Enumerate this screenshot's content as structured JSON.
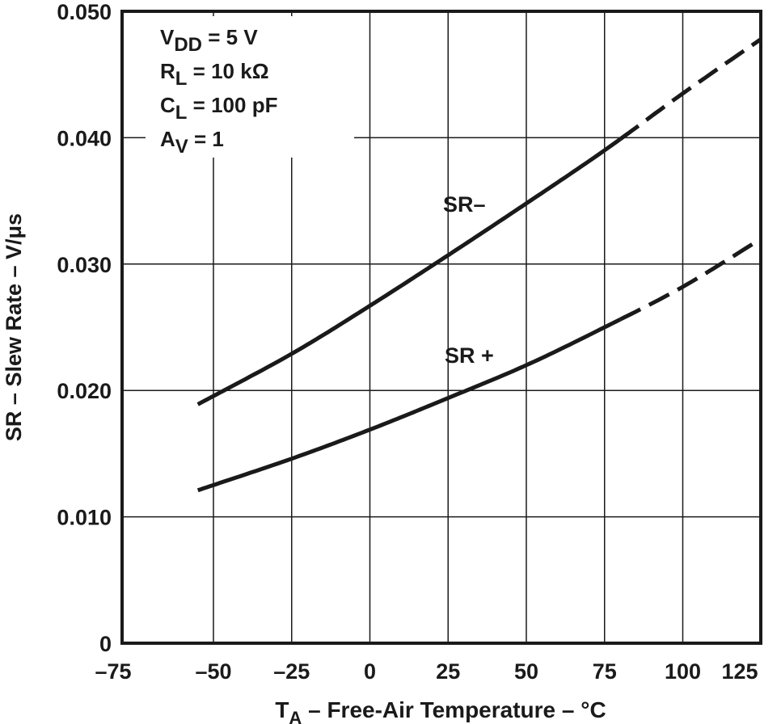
{
  "chart_data": {
    "type": "line",
    "title": "",
    "xlabel": "T_A – Free-Air Temperature – °C",
    "xlabel_main": "T",
    "xlabel_sub": "A",
    "xlabel_rest": " – Free-Air Temperature – °C",
    "ylabel": "SR – Slew Rate – V/μs",
    "xlim": [
      -75,
      125
    ],
    "ylim": [
      0,
      0.05
    ],
    "grid": true,
    "x_ticks": [
      "–75",
      "–50",
      "–25",
      "0",
      "25",
      "50",
      "75",
      "100",
      "125"
    ],
    "x_tick_values": [
      -75,
      -50,
      -25,
      0,
      25,
      50,
      75,
      100,
      125
    ],
    "y_ticks": [
      "0",
      "0.010",
      "0.020",
      "0.030",
      "0.040",
      "0.050"
    ],
    "y_tick_values": [
      0,
      0.01,
      0.02,
      0.03,
      0.04,
      0.05
    ],
    "conditions": [
      {
        "main": "V",
        "sub": "DD",
        "rest": " = 5 V"
      },
      {
        "main": "R",
        "sub": "L",
        "rest": " = 10 kΩ"
      },
      {
        "main": "C",
        "sub": "L",
        "rest": " = 100 pF"
      },
      {
        "main": "A",
        "sub": "V",
        "rest": " = 1"
      }
    ],
    "series": [
      {
        "name": "SR–",
        "label": "SR–",
        "solid_until": 80,
        "x": [
          -55,
          -25,
          0,
          25,
          50,
          75,
          100,
          125
        ],
        "y": [
          0.0189,
          0.0229,
          0.0267,
          0.0307,
          0.0348,
          0.039,
          0.0435,
          0.0478
        ]
      },
      {
        "name": "SR+",
        "label": "SR +",
        "solid_until": 80,
        "x": [
          -55,
          -25,
          0,
          25,
          50,
          75,
          100,
          125
        ],
        "y": [
          0.0121,
          0.0146,
          0.0169,
          0.0194,
          0.022,
          0.025,
          0.0282,
          0.032
        ]
      }
    ]
  }
}
